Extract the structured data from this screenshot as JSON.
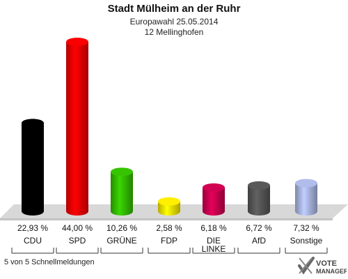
{
  "title": "Stadt Mülheim an der Ruhr",
  "subtitle": "Europawahl 25.05.2014",
  "subtitle2": "12 Mellinghofen",
  "footer": "5 von 5 Schnellmeldungen",
  "logo": {
    "line1": "VOTE",
    "line2": "MANAGER"
  },
  "chart_data": {
    "type": "bar",
    "categories": [
      "CDU",
      "SPD",
      "GRÜNE",
      "FDP",
      "DIE LINKE",
      "AfD",
      "Sonstige"
    ],
    "category_lines": [
      [
        "CDU"
      ],
      [
        "SPD"
      ],
      [
        "GRÜNE"
      ],
      [
        "FDP"
      ],
      [
        "DIE",
        "LINKE"
      ],
      [
        "AfD"
      ],
      [
        "Sonstige"
      ]
    ],
    "values": [
      22.93,
      44.0,
      10.26,
      2.58,
      6.18,
      6.72,
      7.32
    ],
    "value_labels": [
      "22,93 %",
      "44,00 %",
      "10,26 %",
      "2,58 %",
      "6,18 %",
      "6,72 %",
      "7,32 %"
    ],
    "colors": [
      "#000000",
      "#ee0000",
      "#33bb00",
      "#f5e400",
      "#c8004e",
      "#555555",
      "#a8b4e0"
    ],
    "grid": false,
    "legend": "none"
  }
}
